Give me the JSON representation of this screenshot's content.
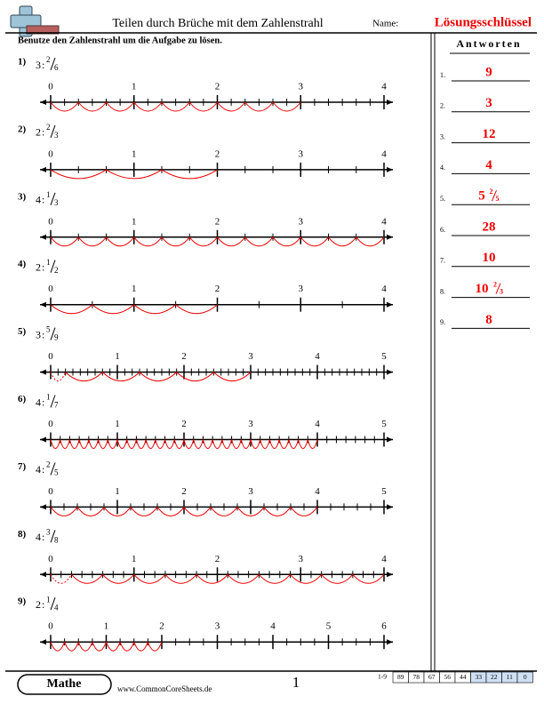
{
  "header": {
    "title": "Teilen durch Brüche mit dem Zahlenstrahl",
    "name_label": "Name:",
    "key": "Lösungsschlüssel"
  },
  "instructions": "Benutze den Zahlenstrahl um die Aufgabe zu lösen.",
  "problems": [
    {
      "number": "1)",
      "dividend": 3,
      "operator": ":",
      "numerator": 2,
      "denominator": 6,
      "ticks": [
        0,
        1,
        2,
        3,
        4
      ]
    },
    {
      "number": "2)",
      "dividend": 2,
      "operator": ":",
      "numerator": 2,
      "denominator": 3,
      "ticks": [
        0,
        1,
        2,
        3,
        4
      ]
    },
    {
      "number": "3)",
      "dividend": 4,
      "operator": ":",
      "numerator": 1,
      "denominator": 3,
      "ticks": [
        0,
        1,
        2,
        3,
        4
      ]
    },
    {
      "number": "4)",
      "dividend": 2,
      "operator": ":",
      "numerator": 1,
      "denominator": 2,
      "ticks": [
        0,
        1,
        2,
        3,
        4
      ]
    },
    {
      "number": "5)",
      "dividend": 3,
      "operator": ":",
      "numerator": 5,
      "denominator": 9,
      "ticks": [
        0,
        1,
        2,
        3,
        4,
        5
      ]
    },
    {
      "number": "6)",
      "dividend": 4,
      "operator": ":",
      "numerator": 1,
      "denominator": 7,
      "ticks": [
        0,
        1,
        2,
        3,
        4,
        5
      ]
    },
    {
      "number": "7)",
      "dividend": 4,
      "operator": ":",
      "numerator": 2,
      "denominator": 5,
      "ticks": [
        0,
        1,
        2,
        3,
        4,
        5
      ]
    },
    {
      "number": "8)",
      "dividend": 4,
      "operator": ":",
      "numerator": 3,
      "denominator": 8,
      "ticks": [
        0,
        1,
        2,
        3,
        4
      ]
    },
    {
      "number": "9)",
      "dividend": 2,
      "operator": ":",
      "numerator": 1,
      "denominator": 4,
      "ticks": [
        0,
        1,
        2,
        3,
        4,
        5,
        6
      ]
    }
  ],
  "answers_title": "Antworten",
  "answers": [
    {
      "number": "1.",
      "whole": "9"
    },
    {
      "number": "2.",
      "whole": "3"
    },
    {
      "number": "3.",
      "whole": "12"
    },
    {
      "number": "4.",
      "whole": "4"
    },
    {
      "number": "5.",
      "whole": "5",
      "numerator": "2",
      "denominator": "5"
    },
    {
      "number": "6.",
      "whole": "28"
    },
    {
      "number": "7.",
      "whole": "10"
    },
    {
      "number": "8.",
      "whole": "10",
      "numerator": "2",
      "denominator": "3"
    },
    {
      "number": "9.",
      "whole": "8"
    }
  ],
  "footer": {
    "brand": "Mathe",
    "site": "www.CommonCoreSheets.de",
    "page": "1",
    "score_range": "1-9",
    "scores": [
      89,
      78,
      67,
      56,
      44,
      33,
      22,
      11,
      0
    ]
  }
}
